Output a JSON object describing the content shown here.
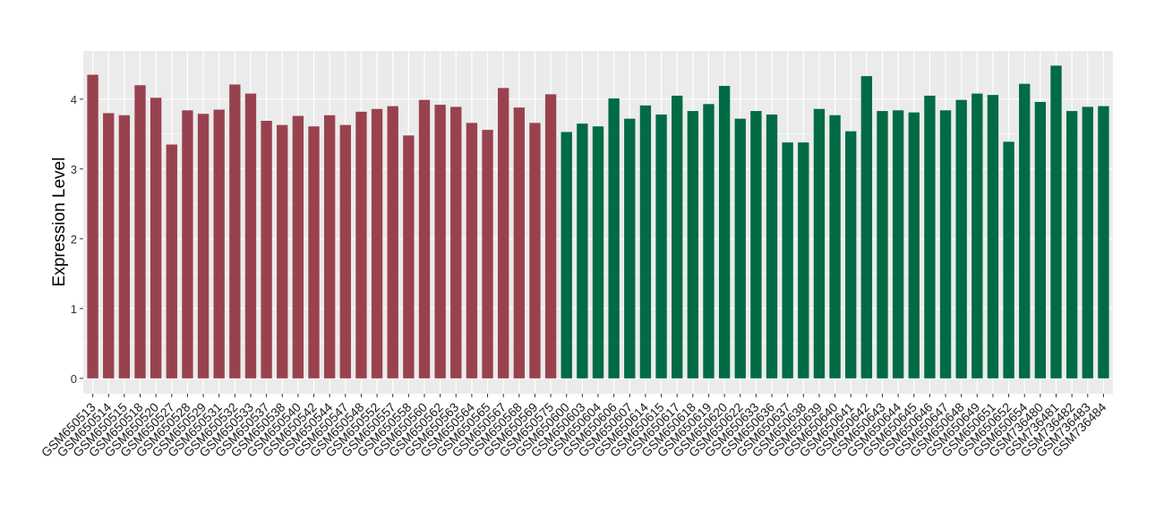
{
  "chart_data": {
    "type": "bar",
    "y_label": "Expression Level",
    "categories": [
      "GSM650513",
      "GSM650514",
      "GSM650515",
      "GSM650518",
      "GSM650520",
      "GSM650527",
      "GSM650528",
      "GSM650529",
      "GSM650531",
      "GSM650532",
      "GSM650533",
      "GSM650537",
      "GSM650538",
      "GSM650540",
      "GSM650542",
      "GSM650544",
      "GSM650547",
      "GSM650548",
      "GSM650552",
      "GSM650557",
      "GSM650558",
      "GSM650560",
      "GSM650562",
      "GSM650563",
      "GSM650564",
      "GSM650565",
      "GSM650567",
      "GSM650568",
      "GSM650569",
      "GSM650575",
      "GSM650600",
      "GSM650603",
      "GSM650604",
      "GSM650606",
      "GSM650607",
      "GSM650614",
      "GSM650615",
      "GSM650617",
      "GSM650618",
      "GSM650619",
      "GSM650620",
      "GSM650622",
      "GSM650633",
      "GSM650636",
      "GSM650637",
      "GSM650638",
      "GSM650639",
      "GSM650640",
      "GSM650641",
      "GSM650642",
      "GSM650643",
      "GSM650644",
      "GSM650645",
      "GSM650646",
      "GSM650647",
      "GSM650648",
      "GSM650649",
      "GSM650651",
      "GSM650652",
      "GSM650654",
      "GSM736480",
      "GSM736481",
      "GSM736482",
      "GSM736483",
      "GSM736484"
    ],
    "values": [
      4.35,
      3.8,
      3.77,
      4.2,
      4.02,
      3.35,
      3.84,
      3.79,
      3.85,
      4.21,
      4.08,
      3.69,
      3.63,
      3.76,
      3.61,
      3.77,
      3.63,
      3.82,
      3.86,
      3.9,
      3.48,
      3.99,
      3.92,
      3.89,
      3.66,
      3.56,
      4.16,
      3.88,
      3.66,
      4.07,
      3.53,
      3.65,
      3.61,
      4.01,
      3.72,
      3.91,
      3.78,
      4.05,
      3.83,
      3.93,
      4.19,
      3.72,
      3.83,
      3.78,
      3.38,
      3.38,
      3.86,
      3.77,
      3.54,
      4.33,
      3.83,
      3.84,
      3.81,
      4.05,
      3.84,
      3.99,
      4.08,
      4.06,
      3.39,
      4.22,
      3.96,
      4.48,
      3.83,
      3.89,
      3.9
    ],
    "colors": [
      "#99424f",
      "#99424f",
      "#99424f",
      "#99424f",
      "#99424f",
      "#99424f",
      "#99424f",
      "#99424f",
      "#99424f",
      "#99424f",
      "#99424f",
      "#99424f",
      "#99424f",
      "#99424f",
      "#99424f",
      "#99424f",
      "#99424f",
      "#99424f",
      "#99424f",
      "#99424f",
      "#99424f",
      "#99424f",
      "#99424f",
      "#99424f",
      "#99424f",
      "#99424f",
      "#99424f",
      "#99424f",
      "#99424f",
      "#99424f",
      "#006b44",
      "#006b44",
      "#006b44",
      "#006b44",
      "#006b44",
      "#006b44",
      "#006b44",
      "#006b44",
      "#006b44",
      "#006b44",
      "#006b44",
      "#006b44",
      "#006b44",
      "#006b44",
      "#006b44",
      "#006b44",
      "#006b44",
      "#006b44",
      "#006b44",
      "#006b44",
      "#006b44",
      "#006b44",
      "#006b44",
      "#006b44",
      "#006b44",
      "#006b44",
      "#006b44",
      "#006b44",
      "#006b44",
      "#006b44",
      "#006b44",
      "#006b44",
      "#006b44",
      "#006b44",
      "#006b44"
    ],
    "ylim": [
      -0.22,
      4.69
    ],
    "yticks": [
      0,
      1,
      2,
      3,
      4
    ],
    "grid": true
  }
}
